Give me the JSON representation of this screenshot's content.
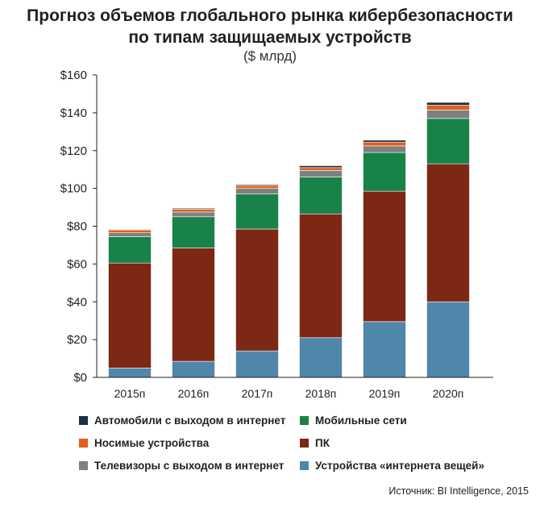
{
  "chart_data": {
    "type": "bar",
    "stacked": true,
    "title": "Прогноз объемов глобального рынка кибербезопасности",
    "title_line2": "по типам защищаемых устройств",
    "subtitle": "($ млрд)",
    "categories": [
      "2015п",
      "2016п",
      "2017п",
      "2018п",
      "2019п",
      "2020п"
    ],
    "ylim": [
      0,
      160
    ],
    "yticks": [
      0,
      20,
      40,
      60,
      80,
      100,
      120,
      140,
      160
    ],
    "ytick_labels": [
      "$0",
      "$20",
      "$40",
      "$60",
      "$80",
      "$100",
      "$120",
      "$140",
      "$160"
    ],
    "grid": false,
    "legend_position": "bottom",
    "series": [
      {
        "name": "Устройства «интернета вещей»",
        "color": "#4f86aa",
        "values": [
          5,
          8.5,
          14,
          21,
          29.5,
          40
        ]
      },
      {
        "name": "ПК",
        "color": "#7d2715",
        "values": [
          55.5,
          60,
          64.5,
          65.5,
          69,
          73
        ]
      },
      {
        "name": "Мобильные сети",
        "color": "#198248",
        "values": [
          14,
          16.5,
          18.5,
          19.5,
          20.5,
          24
        ]
      },
      {
        "name": "Телевизоры с выходом в интернет",
        "color": "#7f8181",
        "values": [
          2,
          2.5,
          3,
          3.5,
          3.5,
          4.5
        ]
      },
      {
        "name": "Носимые устройства",
        "color": "#e25f1b",
        "values": [
          1.5,
          1.5,
          1.5,
          1.5,
          2,
          2.5
        ]
      },
      {
        "name": "Автомобили с выходом в интернет",
        "color": "#1a2f45",
        "values": [
          0.3,
          0.5,
          0.5,
          1,
          1,
          1.5
        ]
      }
    ]
  },
  "legend_order": [
    "Автомобили с выходом в интернет",
    "Мобильные сети",
    "Носимые устройства",
    "ПК",
    "Телевизоры с выходом в интернет",
    "Устройства «интернета вещей»"
  ],
  "source": "Источник: BI Intelligence, 2015"
}
